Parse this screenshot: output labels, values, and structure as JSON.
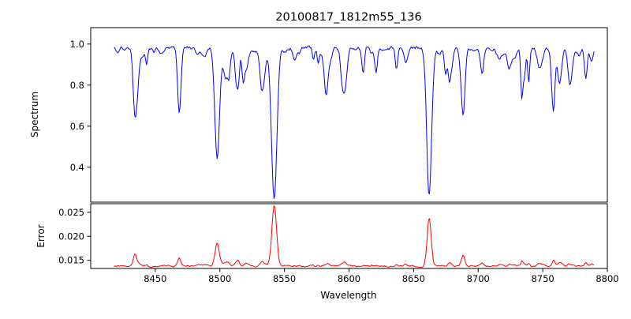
{
  "title": "20100817_1812m55_136",
  "axes": {
    "xlabel": "Wavelength",
    "spectrum_ylabel": "Spectrum",
    "error_ylabel": "Error",
    "x_tick_labels": [
      "8450",
      "8500",
      "8550",
      "8600",
      "8650",
      "8700",
      "8750",
      "8800"
    ],
    "spectrum_y_tick_labels": [
      "1.0",
      "0.8",
      "0.6",
      "0.4"
    ],
    "error_y_tick_labels": [
      "0.025",
      "0.020",
      "0.015"
    ]
  },
  "chart_data": [
    {
      "type": "line",
      "name": "spectrum",
      "title": "20100817_1812m55_136",
      "xlabel": "Wavelength",
      "ylabel": "Spectrum",
      "color": "#0000ff",
      "xlim": [
        8400,
        8800
      ],
      "ylim": [
        0.23,
        1.08
      ],
      "y_ticks": [
        0.4,
        0.6,
        0.8,
        1.0
      ],
      "x_data_range": [
        8418,
        8790
      ],
      "x_step": 0.7,
      "continuum_level": 0.98,
      "noise_amplitude": 0.008,
      "noise_seed": 20100817,
      "weak_line_count": 70,
      "absorption_lines": [
        {
          "center": 8434.0,
          "depth": 0.27,
          "width": 1.3
        },
        {
          "center": 8468.4,
          "depth": 0.15,
          "width": 1.1
        },
        {
          "center": 8498.0,
          "depth": 0.53,
          "width": 1.7
        },
        {
          "center": 8514.1,
          "depth": 0.18,
          "width": 1.1
        },
        {
          "center": 8518.1,
          "depth": 0.16,
          "width": 1.0
        },
        {
          "center": 8542.1,
          "depth": 0.72,
          "width": 2.1
        },
        {
          "center": 8582.0,
          "depth": 0.13,
          "width": 1.0
        },
        {
          "center": 8611.0,
          "depth": 0.13,
          "width": 1.0
        },
        {
          "center": 8621.0,
          "depth": 0.12,
          "width": 1.0
        },
        {
          "center": 8662.1,
          "depth": 0.71,
          "width": 1.9
        },
        {
          "center": 8674.7,
          "depth": 0.13,
          "width": 1.0
        },
        {
          "center": 8688.6,
          "depth": 0.27,
          "width": 1.3
        },
        {
          "center": 8736.0,
          "depth": 0.1,
          "width": 1.0
        },
        {
          "center": 8757.0,
          "depth": 0.1,
          "width": 1.0
        },
        {
          "center": 8772.0,
          "depth": 0.1,
          "width": 1.0
        }
      ]
    },
    {
      "type": "line",
      "name": "error",
      "ylabel": "Error",
      "color": "#ff0000",
      "xlim": [
        8400,
        8800
      ],
      "ylim": [
        0.0133,
        0.0268
      ],
      "y_ticks": [
        0.015,
        0.02,
        0.025
      ],
      "baseline": 0.0138,
      "noise_amplitude": 0.00015,
      "error_peaks": [
        {
          "center": 8434.0,
          "height": 0.0022,
          "width": 1.2
        },
        {
          "center": 8468.4,
          "height": 0.001,
          "width": 1.0
        },
        {
          "center": 8498.0,
          "height": 0.0047,
          "width": 1.6
        },
        {
          "center": 8514.1,
          "height": 0.0012,
          "width": 1.0
        },
        {
          "center": 8542.1,
          "height": 0.0122,
          "width": 1.8
        },
        {
          "center": 8662.1,
          "height": 0.0097,
          "width": 1.6
        },
        {
          "center": 8688.6,
          "height": 0.0018,
          "width": 1.2
        }
      ]
    }
  ]
}
